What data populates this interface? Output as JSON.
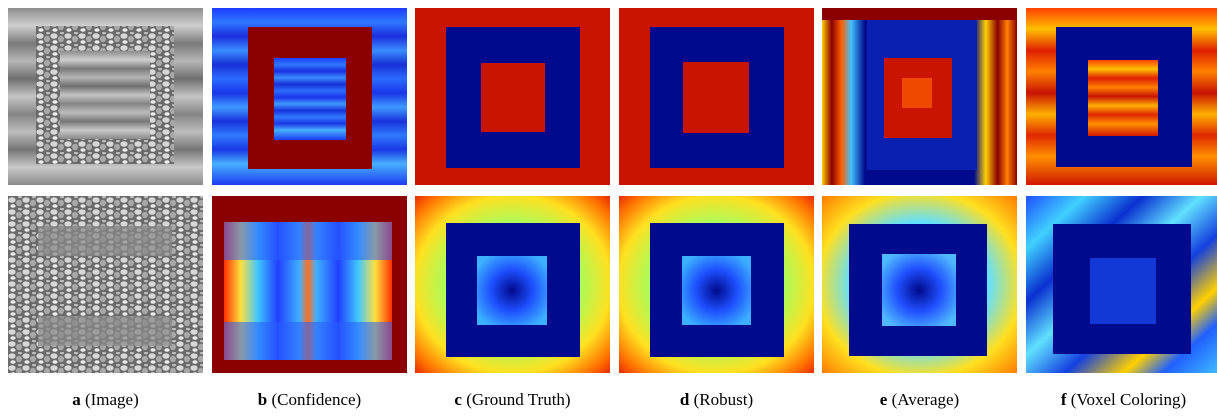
{
  "figure": {
    "columns": [
      {
        "letter": "a",
        "label": "(Image)"
      },
      {
        "letter": "b",
        "label": "(Confidence)"
      },
      {
        "letter": "c",
        "label": "(Ground Truth)"
      },
      {
        "letter": "d",
        "label": "(Robust)"
      },
      {
        "letter": "e",
        "label": "(Average)"
      },
      {
        "letter": "f",
        "label": "(Voxel Coloring)"
      }
    ]
  },
  "colors": {
    "jet_dark_red": "#8b0000",
    "jet_red": "#c81400",
    "jet_dark_blue": "#000a8c",
    "jet_blue": "#1e50ff",
    "jet_cyan": "#3cc8ff",
    "jet_yellow": "#ffdc14",
    "jet_orange": "#ff8c00",
    "gray_dark": "#3a3a3a",
    "gray_mid": "#8a8a8a",
    "gray_light": "#cfcfcf"
  }
}
